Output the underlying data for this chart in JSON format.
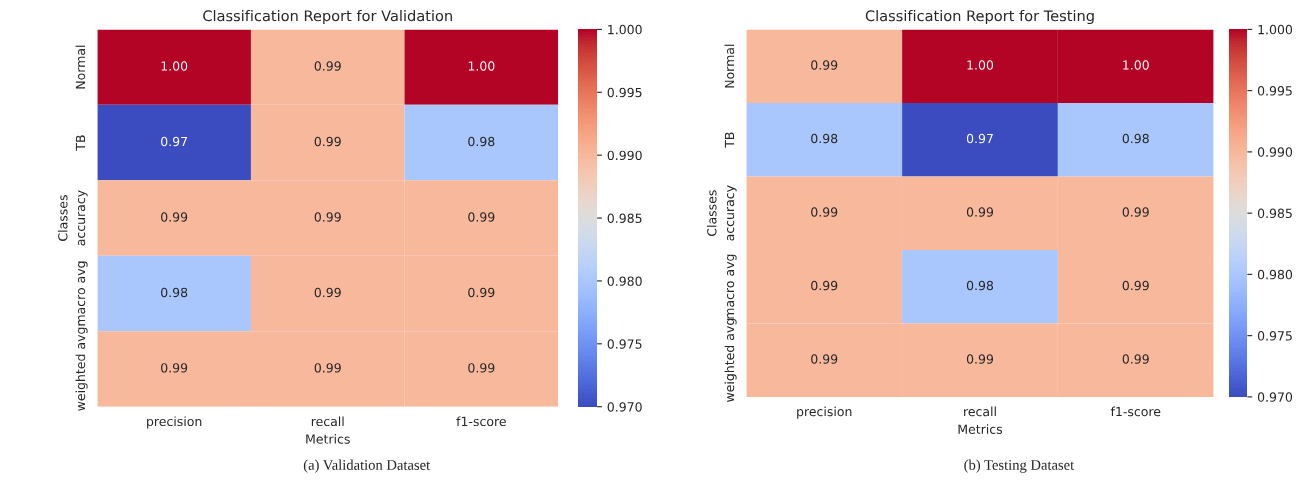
{
  "chart_data": [
    {
      "type": "heatmap",
      "title": "Classification Report for Validation",
      "xlabel": "Metrics",
      "ylabel": "Classes",
      "categories": [
        "precision",
        "recall",
        "f1-score"
      ],
      "y_categories": [
        "Normal",
        "TB",
        "accuracy",
        "macro avg",
        "weighted avg"
      ],
      "cells": [
        [
          1.0,
          0.99,
          1.0
        ],
        [
          0.97,
          0.99,
          0.98
        ],
        [
          0.99,
          0.99,
          0.99
        ],
        [
          0.98,
          0.99,
          0.99
        ],
        [
          0.99,
          0.99,
          0.99
        ]
      ],
      "cell_labels": [
        [
          "1.00",
          "0.99",
          "1.00"
        ],
        [
          "0.97",
          "0.99",
          "0.98"
        ],
        [
          "0.99",
          "0.99",
          "0.99"
        ],
        [
          "0.98",
          "0.99",
          "0.99"
        ],
        [
          "0.99",
          "0.99",
          "0.99"
        ]
      ],
      "clim": [
        0.97,
        1.0
      ],
      "cticks": [
        {
          "value": 0.97,
          "label": "0.970"
        },
        {
          "value": 0.975,
          "label": "0.975"
        },
        {
          "value": 0.98,
          "label": "0.980"
        },
        {
          "value": 0.985,
          "label": "0.985"
        },
        {
          "value": 0.99,
          "label": "0.990"
        },
        {
          "value": 0.995,
          "label": "0.995"
        },
        {
          "value": 1.0,
          "label": "1.000"
        }
      ],
      "annotations": [
        "(a) Validation Dataset"
      ]
    },
    {
      "type": "heatmap",
      "title": "Classification Report for Testing",
      "xlabel": "Metrics",
      "ylabel": "Classes",
      "categories": [
        "precision",
        "recall",
        "f1-score"
      ],
      "y_categories": [
        "Normal",
        "TB",
        "accuracy",
        "macro avg",
        "weighted avg"
      ],
      "cells": [
        [
          0.99,
          1.0,
          1.0
        ],
        [
          0.98,
          0.97,
          0.98
        ],
        [
          0.99,
          0.99,
          0.99
        ],
        [
          0.99,
          0.98,
          0.99
        ],
        [
          0.99,
          0.99,
          0.99
        ]
      ],
      "cell_labels": [
        [
          "0.99",
          "1.00",
          "1.00"
        ],
        [
          "0.98",
          "0.97",
          "0.98"
        ],
        [
          "0.99",
          "0.99",
          "0.99"
        ],
        [
          "0.99",
          "0.98",
          "0.99"
        ],
        [
          "0.99",
          "0.99",
          "0.99"
        ]
      ],
      "clim": [
        0.97,
        1.0
      ],
      "cticks": [
        {
          "value": 0.97,
          "label": "0.970"
        },
        {
          "value": 0.975,
          "label": "0.975"
        },
        {
          "value": 0.98,
          "label": "0.980"
        },
        {
          "value": 0.985,
          "label": "0.985"
        },
        {
          "value": 0.99,
          "label": "0.990"
        },
        {
          "value": 0.995,
          "label": "0.995"
        },
        {
          "value": 1.0,
          "label": "1.000"
        }
      ],
      "annotations": [
        "(b) Testing Dataset"
      ]
    }
  ]
}
